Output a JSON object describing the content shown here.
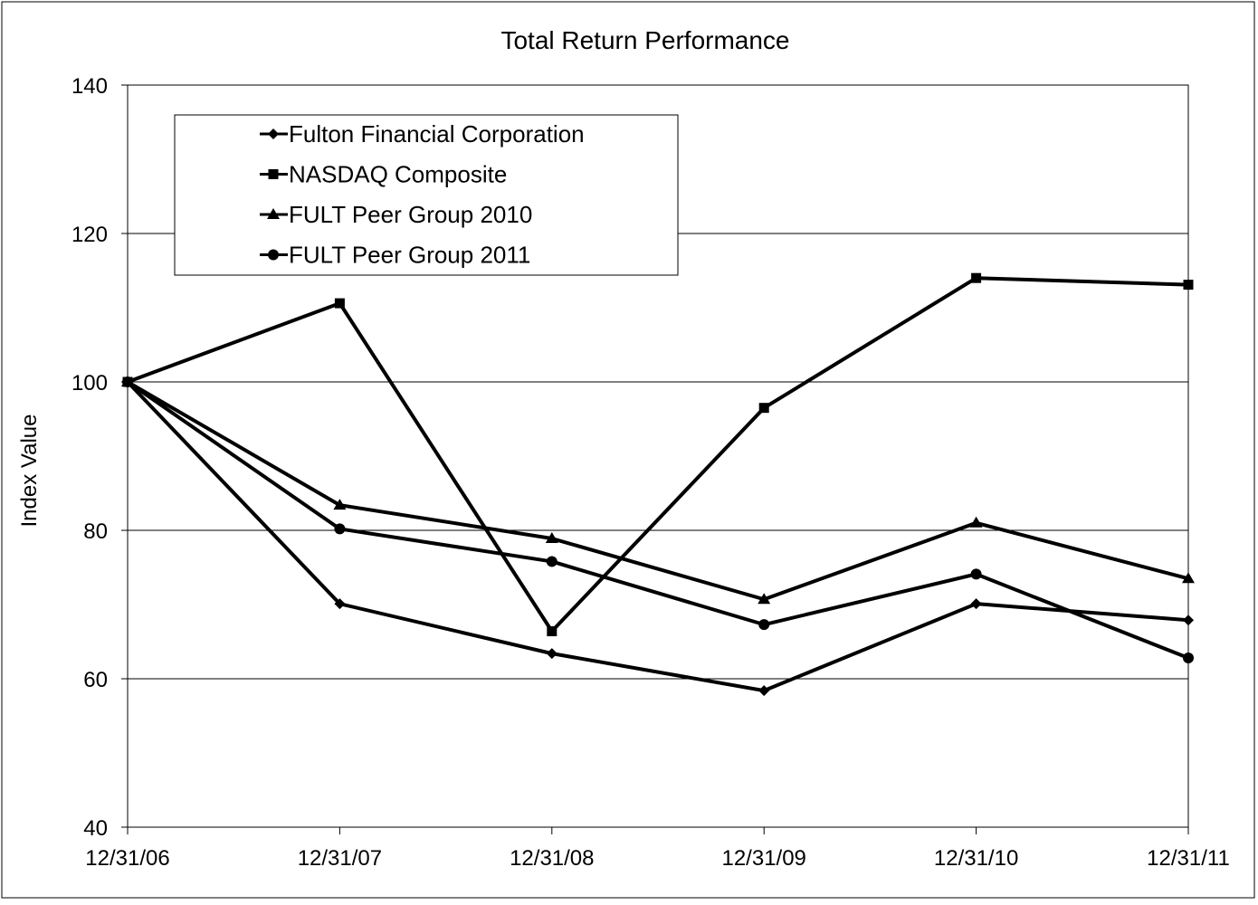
{
  "chart_data": {
    "type": "line",
    "title": "Total Return Performance",
    "xlabel": "",
    "ylabel": "Index Value",
    "categories": [
      "12/31/06",
      "12/31/07",
      "12/31/08",
      "12/31/09",
      "12/31/10",
      "12/31/11"
    ],
    "ylim": [
      40,
      140
    ],
    "yticks": [
      40,
      60,
      80,
      100,
      120,
      140
    ],
    "grid": true,
    "legend_position": "top-left",
    "series": [
      {
        "name": "Fulton Financial Corporation",
        "marker": "diamond",
        "values": [
          100,
          70.1,
          63.4,
          58.4,
          70.1,
          67.9
        ]
      },
      {
        "name": "NASDAQ Composite",
        "marker": "square",
        "values": [
          100,
          110.6,
          66.4,
          96.5,
          114.0,
          113.1
        ]
      },
      {
        "name": "FULT Peer Group 2010",
        "marker": "triangle",
        "values": [
          100,
          83.4,
          78.9,
          70.7,
          81.0,
          73.5
        ]
      },
      {
        "name": "FULT Peer Group 2011",
        "marker": "circle",
        "values": [
          100,
          80.2,
          75.8,
          67.3,
          74.1,
          62.8
        ]
      }
    ],
    "colors": {
      "line": "#000000",
      "grid": "#000000",
      "background": "#ffffff"
    }
  }
}
